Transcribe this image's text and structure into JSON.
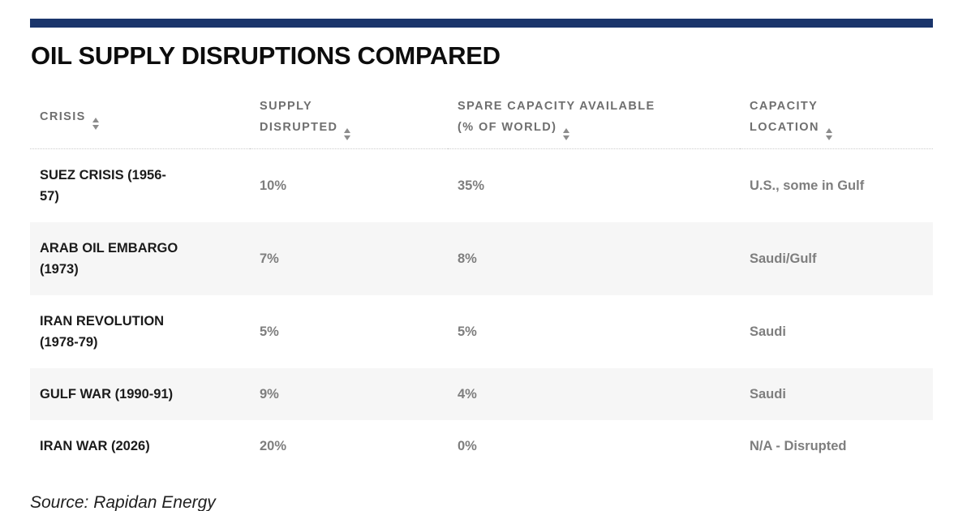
{
  "page": {
    "title": "OIL SUPPLY DISRUPTIONS COMPARED",
    "source": "Source: Rapidan Energy",
    "accent_color": "#1a356b"
  },
  "table": {
    "columns": [
      {
        "id": "crisis",
        "label": "CRISIS"
      },
      {
        "id": "supply_disrupted",
        "label": "SUPPLY\nDISRUPTED"
      },
      {
        "id": "spare_capacity",
        "label": "SPARE CAPACITY AVAILABLE\n(% OF WORLD)"
      },
      {
        "id": "capacity_location",
        "label": "CAPACITY\nLOCATION"
      }
    ],
    "sort_icon": "up-down-triangles",
    "rows": [
      {
        "crisis": "SUEZ CRISIS (1956-\n57)",
        "supply_disrupted": "10%",
        "spare_capacity": "35%",
        "capacity_location": "U.S., some in Gulf"
      },
      {
        "crisis": "ARAB OIL EMBARGO\n(1973)",
        "supply_disrupted": "7%",
        "spare_capacity": "8%",
        "capacity_location": "Saudi/Gulf"
      },
      {
        "crisis": "IRAN REVOLUTION\n(1978-79)",
        "supply_disrupted": "5%",
        "spare_capacity": "5%",
        "capacity_location": "Saudi"
      },
      {
        "crisis": "GULF WAR (1990-91)",
        "supply_disrupted": "9%",
        "spare_capacity": "4%",
        "capacity_location": "Saudi"
      },
      {
        "crisis": "IRAN WAR (2026)",
        "supply_disrupted": "20%",
        "spare_capacity": "0%",
        "capacity_location": "N/A - Disrupted"
      }
    ]
  },
  "chart_data": {
    "type": "table",
    "title": "OIL SUPPLY DISRUPTIONS COMPARED",
    "columns": [
      "Crisis",
      "Supply Disrupted",
      "Spare Capacity Available (% of World)",
      "Capacity Location"
    ],
    "rows": [
      [
        "Suez Crisis (1956-57)",
        "10%",
        "35%",
        "U.S., some in Gulf"
      ],
      [
        "Arab Oil Embargo (1973)",
        "7%",
        "8%",
        "Saudi/Gulf"
      ],
      [
        "Iran Revolution (1978-79)",
        "5%",
        "5%",
        "Saudi"
      ],
      [
        "Gulf War (1990-91)",
        "9%",
        "4%",
        "Saudi"
      ],
      [
        "Iran War (2026)",
        "20%",
        "0%",
        "N/A - Disrupted"
      ]
    ],
    "source": "Rapidan Energy"
  }
}
